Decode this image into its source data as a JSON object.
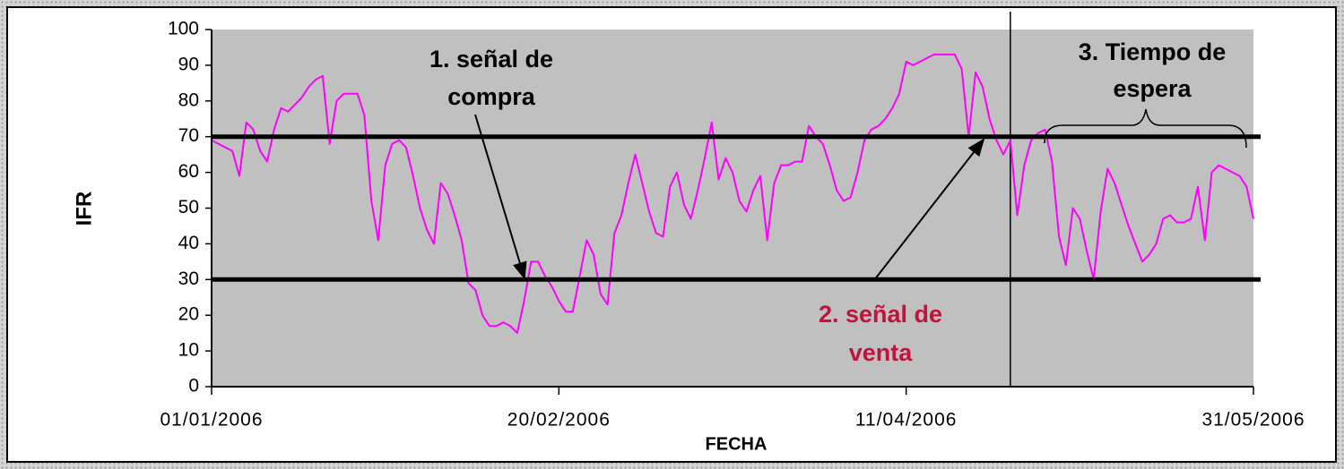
{
  "chart_data": {
    "type": "line",
    "x": [
      "01/01/2006",
      "02/01/2006",
      "03/01/2006",
      "04/01/2006",
      "05/01/2006",
      "06/01/2006",
      "07/01/2006",
      "08/01/2006",
      "09/01/2006",
      "10/01/2006",
      "11/01/2006",
      "12/01/2006",
      "13/01/2006",
      "14/01/2006",
      "15/01/2006",
      "16/01/2006",
      "17/01/2006",
      "18/01/2006",
      "19/01/2006",
      "20/01/2006",
      "21/01/2006",
      "22/01/2006",
      "23/01/2006",
      "24/01/2006",
      "25/01/2006",
      "26/01/2006",
      "27/01/2006",
      "28/01/2006",
      "29/01/2006",
      "30/01/2006",
      "31/01/2006",
      "01/02/2006",
      "02/02/2006",
      "03/02/2006",
      "04/02/2006",
      "05/02/2006",
      "06/02/2006",
      "07/02/2006",
      "08/02/2006",
      "09/02/2006",
      "10/02/2006",
      "11/02/2006",
      "12/02/2006",
      "13/02/2006",
      "14/02/2006",
      "15/02/2006",
      "16/02/2006",
      "17/02/2006",
      "18/02/2006",
      "19/02/2006",
      "20/02/2006",
      "21/02/2006",
      "22/02/2006",
      "23/02/2006",
      "24/02/2006",
      "25/02/2006",
      "26/02/2006",
      "27/02/2006",
      "28/02/2006",
      "01/03/2006",
      "02/03/2006",
      "03/03/2006",
      "04/03/2006",
      "05/03/2006",
      "06/03/2006",
      "07/03/2006",
      "08/03/2006",
      "09/03/2006",
      "10/03/2006",
      "11/03/2006",
      "12/03/2006",
      "13/03/2006",
      "14/03/2006",
      "15/03/2006",
      "16/03/2006",
      "17/03/2006",
      "18/03/2006",
      "19/03/2006",
      "20/03/2006",
      "21/03/2006",
      "22/03/2006",
      "23/03/2006",
      "24/03/2006",
      "25/03/2006",
      "26/03/2006",
      "27/03/2006",
      "28/03/2006",
      "29/03/2006",
      "30/03/2006",
      "31/03/2006",
      "01/04/2006",
      "02/04/2006",
      "03/04/2006",
      "04/04/2006",
      "05/04/2006",
      "06/04/2006",
      "07/04/2006",
      "08/04/2006",
      "09/04/2006",
      "10/04/2006",
      "11/04/2006",
      "12/04/2006",
      "13/04/2006",
      "14/04/2006",
      "15/04/2006",
      "16/04/2006",
      "17/04/2006",
      "18/04/2006",
      "19/04/2006",
      "20/04/2006",
      "21/04/2006",
      "22/04/2006",
      "23/04/2006",
      "24/04/2006",
      "25/04/2006",
      "26/04/2006",
      "27/04/2006",
      "28/04/2006",
      "29/04/2006",
      "30/04/2006",
      "01/05/2006",
      "02/05/2006",
      "03/05/2006",
      "04/05/2006",
      "05/05/2006",
      "06/05/2006",
      "07/05/2006",
      "08/05/2006",
      "09/05/2006",
      "10/05/2006",
      "11/05/2006",
      "12/05/2006",
      "13/05/2006",
      "14/05/2006",
      "15/05/2006",
      "16/05/2006",
      "17/05/2006",
      "18/05/2006",
      "19/05/2006",
      "20/05/2006",
      "21/05/2006",
      "22/05/2006",
      "23/05/2006",
      "24/05/2006",
      "25/05/2006",
      "26/05/2006",
      "27/05/2006",
      "28/05/2006",
      "29/05/2006",
      "30/05/2006",
      "31/05/2006"
    ],
    "values": [
      69,
      68,
      67,
      66,
      59,
      74,
      72,
      66,
      63,
      72,
      78,
      77,
      79,
      81,
      84,
      86,
      87,
      68,
      80,
      82,
      82,
      82,
      76,
      52,
      41,
      62,
      68,
      69,
      67,
      59,
      50,
      44,
      40,
      57,
      54,
      48,
      41,
      29,
      27,
      20,
      17,
      17,
      18,
      17,
      15,
      24,
      35,
      35,
      31,
      28,
      24,
      21,
      21,
      31,
      41,
      37,
      26,
      23,
      43,
      48,
      57,
      65,
      57,
      49,
      43,
      42,
      56,
      60,
      51,
      47,
      55,
      64,
      74,
      58,
      64,
      60,
      52,
      49,
      55,
      59,
      41,
      57,
      62,
      62,
      63,
      63,
      73,
      70,
      68,
      62,
      55,
      52,
      53,
      60,
      69,
      72,
      73,
      75,
      78,
      82,
      91,
      90,
      91,
      92,
      93,
      93,
      93,
      93,
      89,
      70,
      88,
      84,
      75,
      69,
      65,
      69,
      48,
      62,
      69,
      71,
      72,
      63,
      42,
      34,
      50,
      47,
      38,
      30,
      49,
      61,
      57,
      51,
      45,
      40,
      35,
      37,
      40,
      47,
      48,
      46,
      46,
      47,
      56,
      41,
      60,
      62,
      61,
      60,
      59,
      56,
      47
    ],
    "color": "#ff00ff",
    "xlim": [
      "01/01/2006",
      "31/05/2006"
    ],
    "xticks": [
      "01/01/2006",
      "20/02/2006",
      "11/04/2006",
      "31/05/2006"
    ],
    "ylim": [
      0,
      100
    ],
    "yticks": [
      0,
      10,
      20,
      30,
      40,
      50,
      60,
      70,
      80,
      90,
      100
    ],
    "hlines": [
      30,
      70
    ],
    "vline": "26/04/2006",
    "xlabel": "FECHA",
    "ylabel": "IFR",
    "annotations": [
      {
        "text": [
          "1. señal de",
          "compra"
        ],
        "color": "#000000"
      },
      {
        "text": [
          "2. señal de",
          "venta"
        ],
        "color": "#c0143c"
      },
      {
        "text": [
          "3. Tiempo de",
          "espera"
        ],
        "color": "#000000"
      }
    ]
  }
}
